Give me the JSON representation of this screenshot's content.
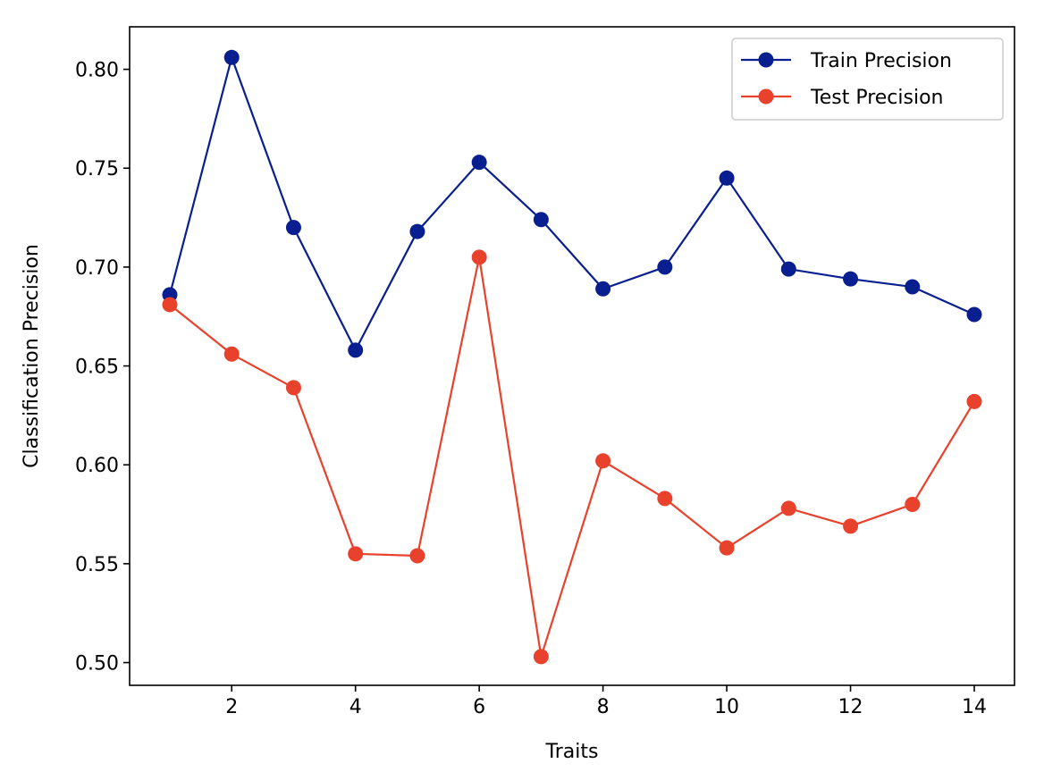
{
  "chart_data": {
    "type": "line",
    "title": "",
    "xlabel": "Traits",
    "ylabel": "Classification Precision",
    "xlim": [
      0.35,
      14.65
    ],
    "ylim": [
      0.4885,
      0.8215
    ],
    "x_ticks": [
      2,
      4,
      6,
      8,
      10,
      12,
      14
    ],
    "x_tick_labels": [
      "2",
      "4",
      "6",
      "8",
      "10",
      "12",
      "14"
    ],
    "y_ticks": [
      0.5,
      0.55,
      0.6,
      0.65,
      0.7,
      0.75,
      0.8
    ],
    "y_tick_labels": [
      "0.50",
      "0.55",
      "0.60",
      "0.65",
      "0.70",
      "0.75",
      "0.80"
    ],
    "grid": false,
    "legend_position": "top-right",
    "x": [
      1,
      2,
      3,
      4,
      5,
      6,
      7,
      8,
      9,
      10,
      11,
      12,
      13,
      14
    ],
    "series": [
      {
        "name": "Train Precision",
        "color": "#0a1f8f",
        "marker": "circle",
        "values": [
          0.686,
          0.806,
          0.72,
          0.658,
          0.718,
          0.753,
          0.724,
          0.689,
          0.7,
          0.745,
          0.699,
          0.694,
          0.69,
          0.676
        ]
      },
      {
        "name": "Test Precision",
        "color": "#e8412c",
        "marker": "circle",
        "values": [
          0.681,
          0.656,
          0.639,
          0.555,
          0.554,
          0.705,
          0.503,
          0.602,
          0.583,
          0.558,
          0.578,
          0.569,
          0.58,
          0.632
        ]
      }
    ]
  }
}
